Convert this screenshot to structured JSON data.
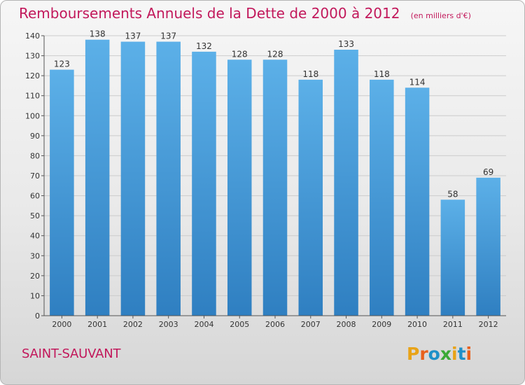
{
  "header": {
    "title": "Remboursements Annuels de la Dette de 2000 à 2012",
    "unit": "(en milliers d'€)"
  },
  "footer": {
    "commune": "SAINT-SAUVANT",
    "logo_text": "Proxiti",
    "logo_colors": [
      "#e8a317",
      "#e8601c",
      "#1e90c8",
      "#3aa935",
      "#e8a317",
      "#1e90c8",
      "#e8601c"
    ]
  },
  "colors": {
    "title": "#c2185b",
    "bar_top": "#5cb0e8",
    "bar_bottom": "#2f7fc1",
    "grid": "#cccccc",
    "axis": "#555555"
  },
  "chart_data": {
    "type": "bar",
    "categories": [
      "2000",
      "2001",
      "2002",
      "2003",
      "2004",
      "2005",
      "2006",
      "2007",
      "2008",
      "2009",
      "2010",
      "2011",
      "2012"
    ],
    "values": [
      123,
      138,
      137,
      137,
      132,
      128,
      128,
      118,
      133,
      118,
      114,
      58,
      69
    ],
    "title": "Remboursements Annuels de la Dette de 2000 à 2012",
    "ylim": [
      0,
      140
    ],
    "yticks": [
      0,
      10,
      20,
      30,
      40,
      50,
      60,
      70,
      80,
      90,
      100,
      110,
      120,
      130,
      140
    ],
    "grid": true,
    "data_labels": true
  }
}
